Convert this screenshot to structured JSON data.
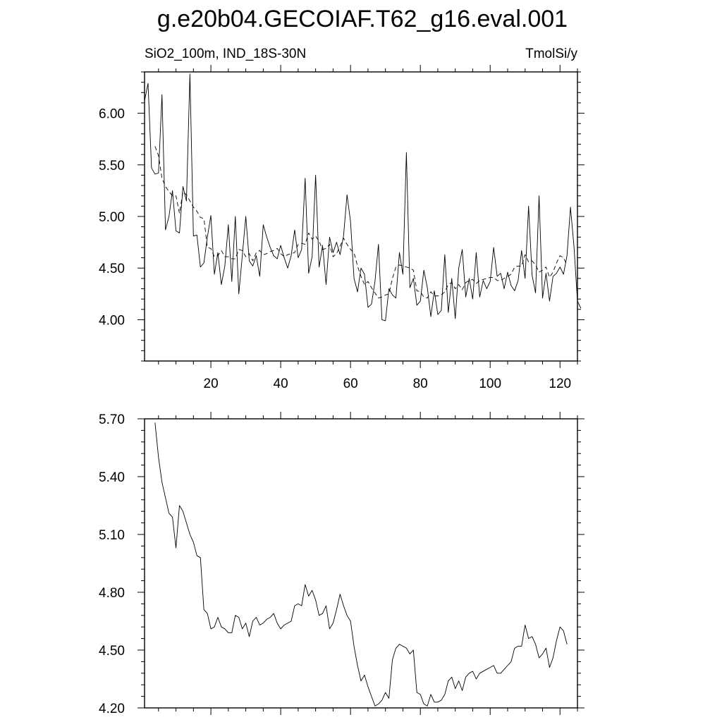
{
  "title": "g.e20b04.GECOIAF.T62_g16.eval.001",
  "chart_data": [
    {
      "type": "line",
      "subtitle_left": "SiO2_100m, IND_18S-30N",
      "subtitle_right": "TmolSi/y",
      "xlim": [
        1,
        125
      ],
      "ylim": [
        3.6,
        6.4
      ],
      "x_ticks": [
        20,
        40,
        60,
        80,
        100,
        120
      ],
      "x_tick_labels": [
        "20",
        "40",
        "60",
        "80",
        "100",
        "120"
      ],
      "y_ticks": [
        4.0,
        4.5,
        5.0,
        5.5,
        6.0
      ],
      "y_tick_labels": [
        "4.00",
        "4.50",
        "5.00",
        "5.50",
        "6.00"
      ],
      "series": [
        {
          "style": "solid",
          "x_start": 1,
          "values": [
            6.12,
            6.29,
            5.47,
            5.41,
            5.42,
            6.18,
            4.87,
            5.0,
            5.25,
            4.86,
            4.84,
            5.29,
            5.15,
            6.38,
            4.81,
            4.82,
            4.51,
            4.55,
            4.8,
            5.01,
            4.44,
            4.65,
            4.34,
            4.52,
            4.92,
            4.37,
            5.0,
            4.25,
            4.62,
            5.0,
            4.57,
            4.52,
            4.62,
            4.42,
            4.92,
            4.8,
            4.7,
            4.62,
            4.59,
            4.72,
            4.6,
            4.5,
            4.62,
            4.87,
            4.6,
            4.68,
            5.37,
            4.45,
            4.61,
            5.4,
            4.51,
            4.72,
            4.34,
            4.8,
            4.65,
            4.75,
            4.63,
            4.81,
            5.21,
            4.95,
            4.4,
            4.27,
            4.5,
            4.44,
            4.12,
            4.15,
            4.37,
            4.73,
            4.0,
            3.99,
            4.3,
            4.24,
            4.21,
            4.65,
            4.44,
            5.62,
            4.31,
            4.4,
            4.14,
            4.18,
            4.48,
            4.31,
            4.03,
            4.28,
            4.05,
            4.09,
            4.63,
            4.07,
            4.4,
            4.01,
            4.5,
            4.68,
            4.22,
            4.4,
            4.2,
            4.65,
            4.22,
            4.38,
            4.3,
            4.37,
            4.7,
            4.42,
            4.45,
            4.3,
            4.46,
            4.33,
            4.28,
            4.38,
            4.67,
            4.4,
            5.1,
            4.43,
            4.26,
            5.2,
            4.21,
            4.45,
            4.18,
            4.42,
            4.45,
            4.51,
            4.44,
            4.62,
            5.09,
            4.71,
            4.18,
            4.11
          ]
        },
        {
          "style": "dashed",
          "x_start": 4,
          "values": [
            5.68,
            5.59,
            5.37,
            5.29,
            5.24,
            5.2,
            5.2,
            5.03,
            5.24,
            5.21,
            5.15,
            5.09,
            5.05,
            4.99,
            4.98,
            4.7,
            4.69,
            4.61,
            4.62,
            4.67,
            4.61,
            4.61,
            4.59,
            4.59,
            4.68,
            4.67,
            4.61,
            4.64,
            4.57,
            4.65,
            4.67,
            4.63,
            4.64,
            4.66,
            4.67,
            4.69,
            4.64,
            4.61,
            4.63,
            4.64,
            4.65,
            4.73,
            4.74,
            4.73,
            4.84,
            4.78,
            4.81,
            4.76,
            4.68,
            4.69,
            4.73,
            4.61,
            4.64,
            4.71,
            4.79,
            4.73,
            4.68,
            4.65,
            4.52,
            4.42,
            4.34,
            4.37,
            4.31,
            4.26,
            4.21,
            4.22,
            4.24,
            4.25,
            4.4,
            4.51,
            4.53,
            4.52,
            4.51,
            4.5,
            4.48,
            4.28,
            4.27,
            4.22,
            4.21,
            4.27,
            4.23,
            4.23,
            4.24,
            4.27,
            4.34,
            4.36,
            4.3,
            4.34,
            4.29,
            4.36,
            4.38,
            4.39,
            4.35,
            4.38,
            4.39,
            4.4,
            4.41,
            4.41,
            4.38,
            4.38,
            4.4,
            4.42,
            4.44,
            4.51,
            4.52,
            4.52,
            4.63,
            4.56,
            4.57,
            4.53,
            4.46,
            4.48,
            4.51,
            4.41,
            4.46,
            4.55,
            4.62,
            4.6,
            4.53
          ]
        }
      ]
    },
    {
      "type": "line",
      "xlim": [
        1,
        125
      ],
      "ylim": [
        4.2,
        5.7
      ],
      "y_ticks": [
        4.2,
        4.5,
        4.8,
        5.1,
        5.4,
        5.7
      ],
      "y_tick_labels": [
        "4.20",
        "4.50",
        "4.80",
        "5.10",
        "5.40",
        "5.70"
      ],
      "series": [
        {
          "style": "solid",
          "x_start": 4,
          "values": [
            5.68,
            5.5,
            5.37,
            5.29,
            5.21,
            5.19,
            5.03,
            5.25,
            5.22,
            5.16,
            5.1,
            5.06,
            4.99,
            4.98,
            4.71,
            4.69,
            4.61,
            4.62,
            4.67,
            4.62,
            4.61,
            4.59,
            4.59,
            4.68,
            4.67,
            4.61,
            4.64,
            4.57,
            4.65,
            4.67,
            4.63,
            4.64,
            4.66,
            4.67,
            4.69,
            4.64,
            4.61,
            4.63,
            4.64,
            4.65,
            4.73,
            4.74,
            4.73,
            4.84,
            4.78,
            4.81,
            4.76,
            4.68,
            4.69,
            4.73,
            4.61,
            4.64,
            4.71,
            4.79,
            4.73,
            4.68,
            4.65,
            4.52,
            4.42,
            4.34,
            4.37,
            4.31,
            4.26,
            4.21,
            4.22,
            4.24,
            4.28,
            4.25,
            4.45,
            4.51,
            4.53,
            4.52,
            4.51,
            4.48,
            4.5,
            4.28,
            4.27,
            4.22,
            4.21,
            4.27,
            4.23,
            4.23,
            4.24,
            4.27,
            4.34,
            4.36,
            4.3,
            4.34,
            4.29,
            4.36,
            4.38,
            4.39,
            4.35,
            4.38,
            4.39,
            4.4,
            4.41,
            4.42,
            4.38,
            4.38,
            4.4,
            4.42,
            4.44,
            4.51,
            4.52,
            4.52,
            4.63,
            4.56,
            4.57,
            4.53,
            4.46,
            4.48,
            4.51,
            4.41,
            4.46,
            4.55,
            4.62,
            4.6,
            4.53
          ]
        }
      ]
    }
  ]
}
